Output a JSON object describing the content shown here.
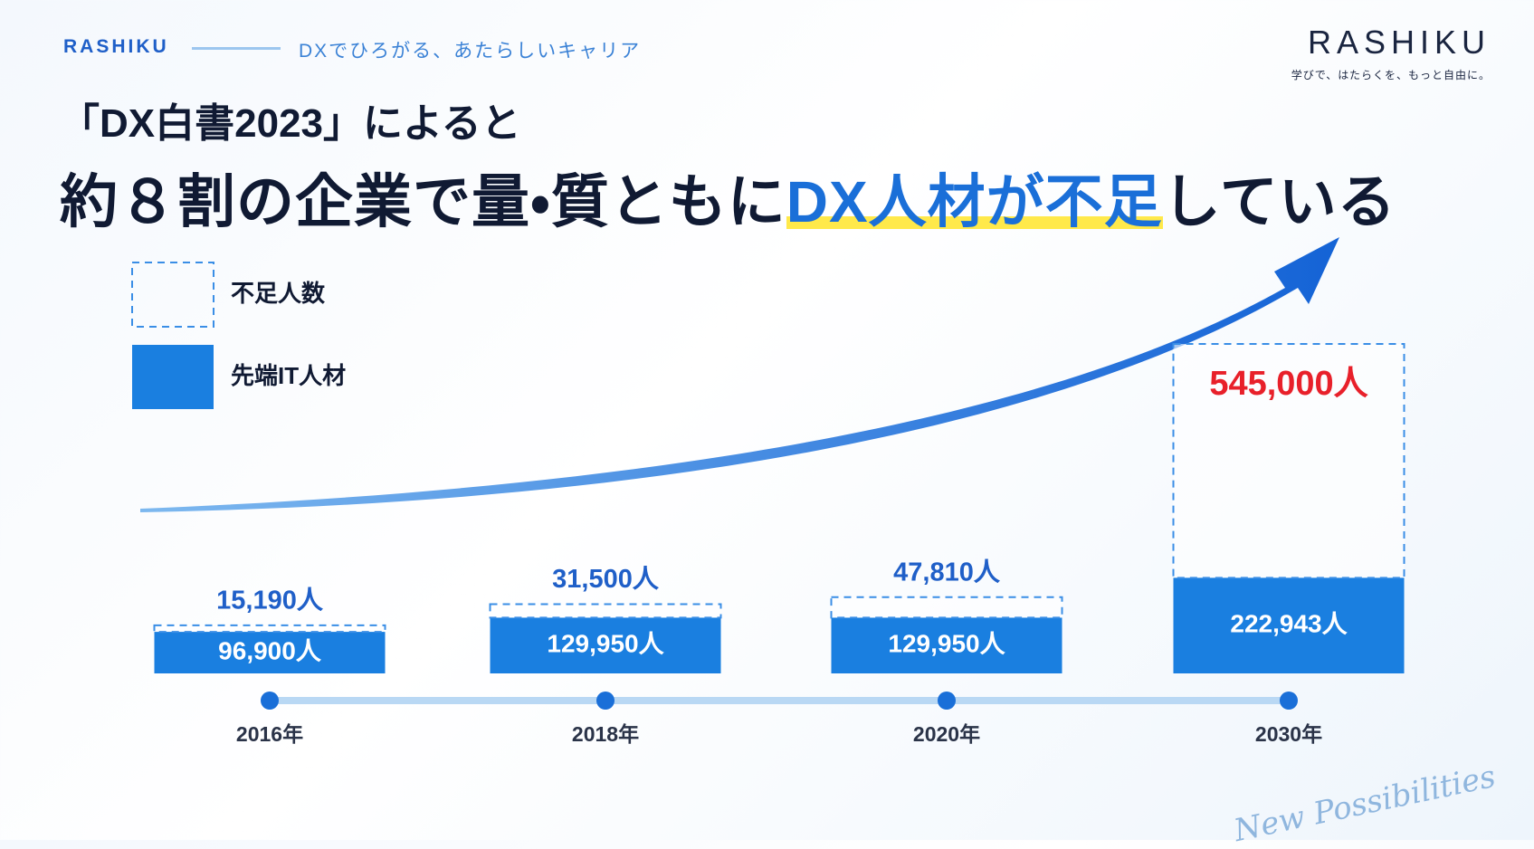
{
  "header": {
    "brand": "RASHIKU",
    "tagline": "DXでひろがる、あたらしいキャリア"
  },
  "logo": {
    "name": "RASHIKU",
    "slogan": "学びで、はたらくを、もっと自由に。"
  },
  "decoration": {
    "script": "New Possibilities"
  },
  "chart_data": {
    "type": "bar",
    "stacked": true,
    "title": "「DX白書2023」によると",
    "subtitle": [
      "約８割の企業で量・質ともに",
      "DX人材が不足",
      "している"
    ],
    "categories": [
      "2016年",
      "2018年",
      "2020年",
      "2030年"
    ],
    "series": [
      {
        "name": "不足人数",
        "color": "#3a8ee6",
        "style": "dashed",
        "values": [
          15190,
          31500,
          47810,
          545000
        ],
        "value_labels": [
          "15,190人",
          "31,500人",
          "47,810人",
          "545,000人"
        ],
        "value_label_colors": [
          "#1f5fc8",
          "#1f5fc8",
          "#1f5fc8",
          "#e8202a"
        ]
      },
      {
        "name": "先端IT人材",
        "color": "#1a7fe0",
        "style": "solid",
        "values": [
          96900,
          129950,
          129950,
          222943
        ],
        "value_labels": [
          "96,900人",
          "129,950人",
          "129,950人",
          "222,943人"
        ]
      }
    ],
    "legend": "top-left"
  }
}
